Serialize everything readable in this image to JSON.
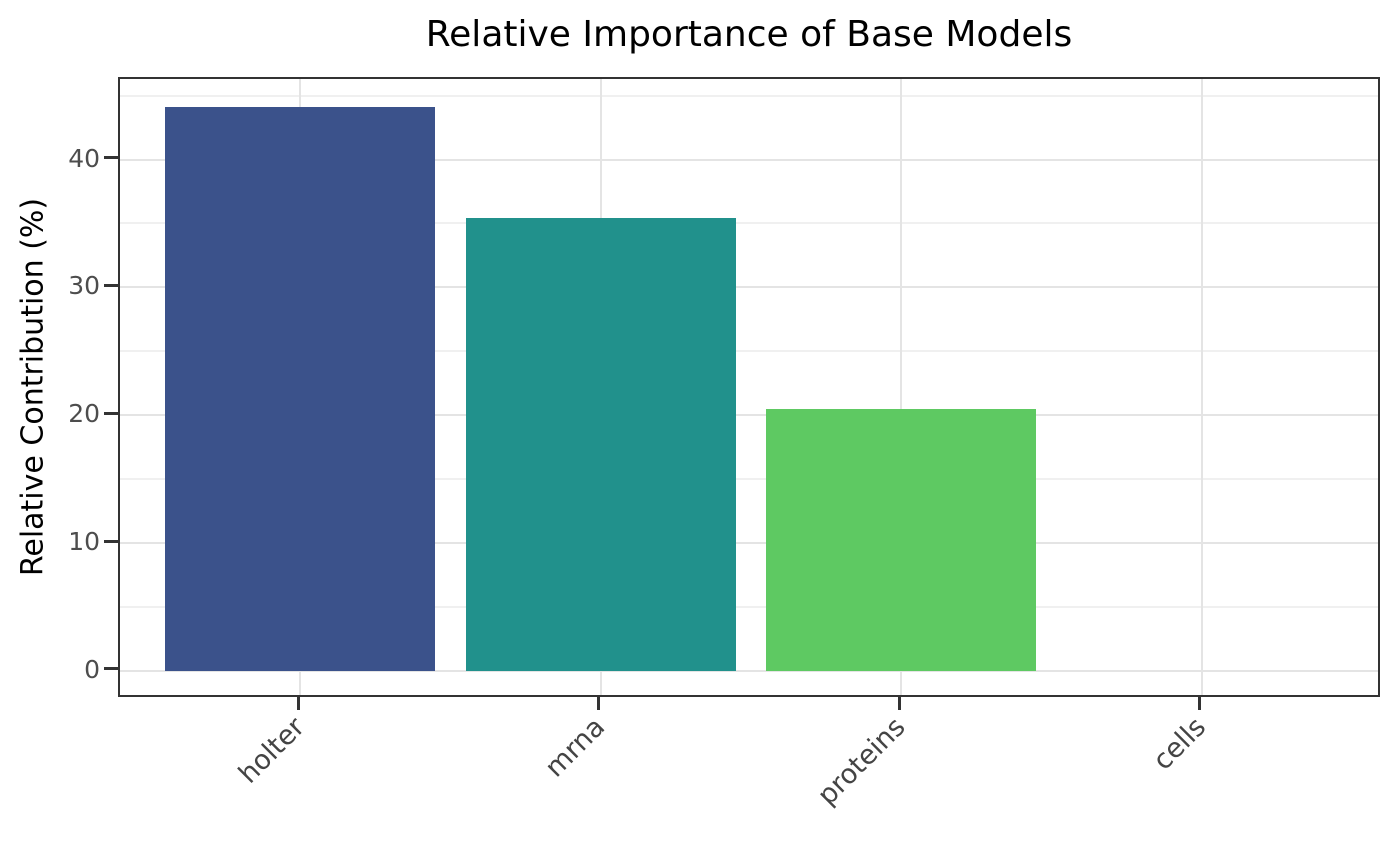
{
  "chart_data": {
    "type": "bar",
    "title": "Relative Importance of Base Models",
    "xlabel": "",
    "ylabel": "Relative Contribution (%)",
    "categories": [
      "holter",
      "mrna",
      "proteins",
      "cells"
    ],
    "values": [
      44.1,
      35.4,
      20.5,
      0.0
    ],
    "bar_colors": [
      "#3b528b",
      "#21918c",
      "#5ec962",
      "#fde725"
    ],
    "palette": "viridis",
    "y_major_ticks": [
      0,
      10,
      20,
      30,
      40
    ],
    "y_minor_gridlines": [
      5,
      15,
      25,
      35,
      45
    ],
    "ylim": [
      -2.2,
      46.3
    ],
    "xlim": [
      -0.6,
      3.6
    ],
    "bar_width": 0.9,
    "x_tick_rotation_deg": 45,
    "grid": "horizontal major+minor, vertical major at category centers",
    "legend": "none",
    "styles": {
      "background": "#ffffff",
      "major_grid_color": "#e4e4e4",
      "minor_grid_color": "#f0f0f0",
      "panel_border_color": "#333333",
      "tick_mark_color": "#333333",
      "tick_label_color": "#4d4d4d",
      "x_tick_label_color": "#444444",
      "title_color": "#000000",
      "axis_label_color": "#000000"
    }
  }
}
